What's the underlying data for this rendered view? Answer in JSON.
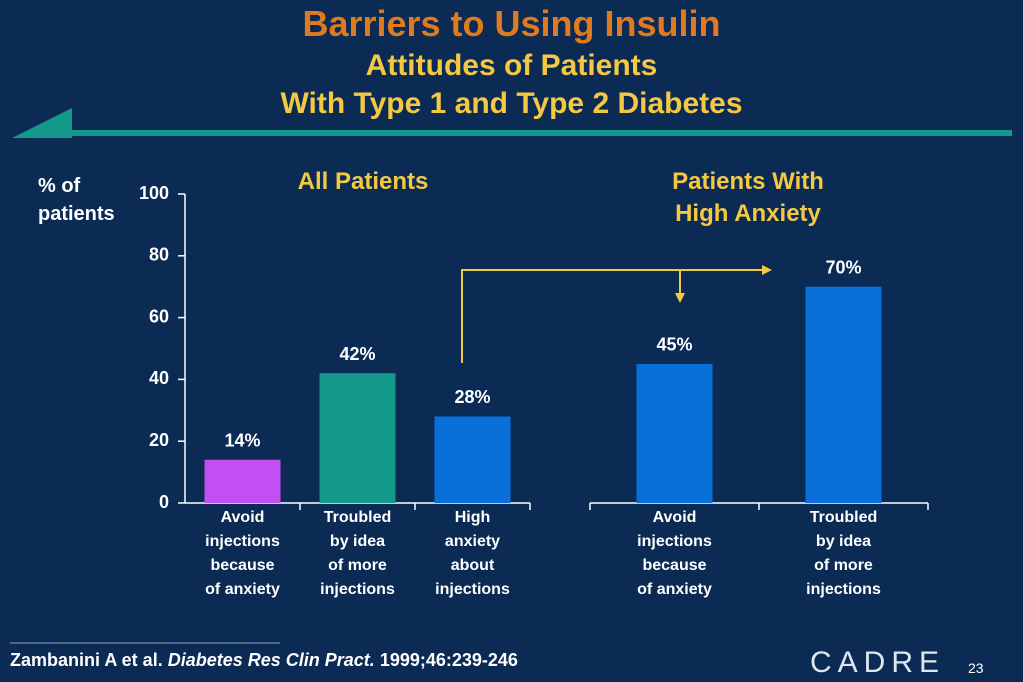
{
  "title": "Barriers to Using Insulin",
  "subtitle_lines": [
    "Attitudes of Patients",
    "With Type 1 and Type 2 Diabetes"
  ],
  "citation": {
    "authors": "Zambanini A et al.",
    "journal": "Diabetes Res Clin Pract.",
    "details": "1999;46:239-246"
  },
  "logo": "CADRE",
  "slide_number": "23",
  "chart_data": [
    {
      "type": "bar",
      "title": "All Patients",
      "y_label": "% of\npatients",
      "categories": [
        "Avoid\ninjections\nbecause\nof anxiety",
        "Troubled\nby idea\nof more\ninjections",
        "High\nanxiety\nabout\ninjections"
      ],
      "values": [
        14,
        42,
        28
      ],
      "value_labels": [
        "14%",
        "42%",
        "28%"
      ],
      "colors": [
        "#c24ff2",
        "#12998a",
        "#0b6fd9"
      ],
      "ylim": [
        0,
        100
      ],
      "yticks": [
        0,
        20,
        40,
        60,
        80,
        100
      ]
    },
    {
      "type": "bar",
      "title": "Patients With\nHigh Anxiety",
      "categories": [
        "Avoid\ninjections\nbecause\nof anxiety",
        "Troubled\nby idea\nof more\ninjections"
      ],
      "values": [
        45,
        70
      ],
      "value_labels": [
        "45%",
        "70%"
      ],
      "colors": [
        "#0b6fd9",
        "#0b6fd9"
      ],
      "ylim": [
        0,
        100
      ]
    }
  ]
}
